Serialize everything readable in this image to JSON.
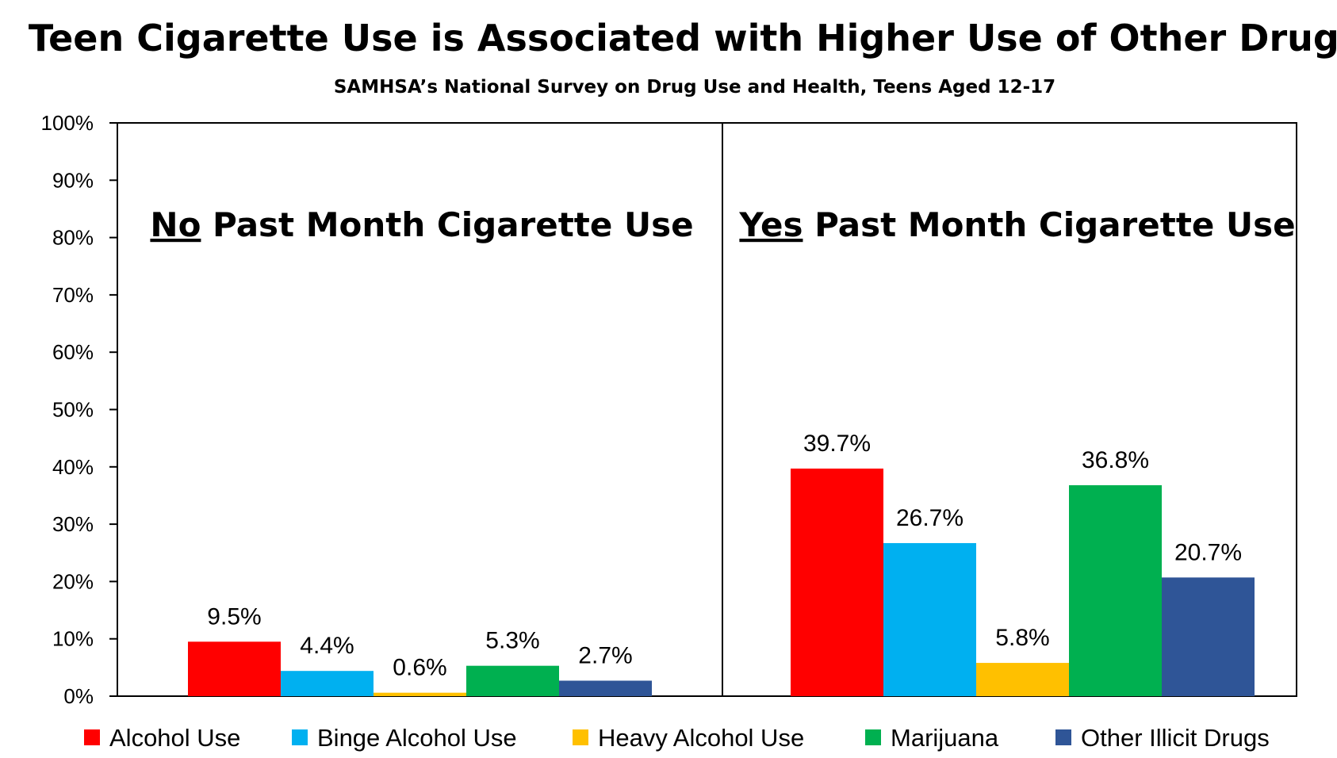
{
  "chart_data": {
    "type": "bar",
    "title": "Teen Cigarette Use is Associated with Higher Use of Other Drugs",
    "subtitle": "SAMHSA’s National Survey on Drug Use and Health, Teens Aged 12-17",
    "xlabel": "",
    "ylabel": "",
    "ylim": [
      0,
      100
    ],
    "y_ticks": [
      0,
      10,
      20,
      30,
      40,
      50,
      60,
      70,
      80,
      90,
      100
    ],
    "y_tick_suffix": "%",
    "value_suffix": "%",
    "grid": false,
    "legend_position": "bottom",
    "categories": [
      "No Past Month Cigarette Use",
      "Yes Past Month Cigarette Use"
    ],
    "panels": [
      {
        "emphasis": "No",
        "rest": " Past Month Cigarette Use"
      },
      {
        "emphasis": "Yes",
        "rest": " Past Month Cigarette Use"
      }
    ],
    "series": [
      {
        "name": "Alcohol Use",
        "color": "#ff0000",
        "values": [
          9.5,
          39.7
        ]
      },
      {
        "name": "Binge Alcohol Use",
        "color": "#00b0f0",
        "values": [
          4.4,
          26.7
        ]
      },
      {
        "name": "Heavy Alcohol Use",
        "color": "#ffc000",
        "values": [
          0.6,
          5.8
        ]
      },
      {
        "name": "Marijuana",
        "color": "#00b050",
        "values": [
          5.3,
          36.8
        ]
      },
      {
        "name": "Other Illicit Drugs",
        "color": "#2f5597",
        "values": [
          2.7,
          20.7
        ]
      }
    ]
  }
}
